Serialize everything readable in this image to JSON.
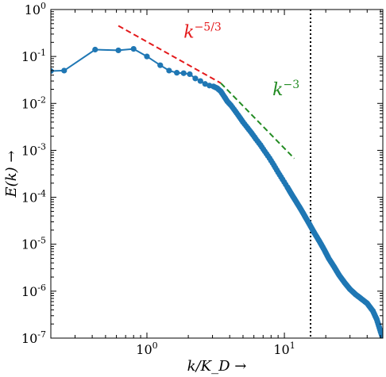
{
  "chart_data": {
    "type": "line",
    "xscale": "log",
    "yscale": "log",
    "xlim": [
      0.2,
      52
    ],
    "ylim": [
      1e-07,
      1
    ],
    "xlabel": "k/K_D →",
    "ylabel": "E(k) →",
    "x_ticks": [
      {
        "value": 1,
        "base": "10",
        "exp": "0"
      },
      {
        "value": 10,
        "base": "10",
        "exp": "1"
      }
    ],
    "y_ticks": [
      {
        "value": 1,
        "base": "10",
        "exp": "0"
      },
      {
        "value": 0.1,
        "base": "10",
        "exp": "-1"
      },
      {
        "value": 0.01,
        "base": "10",
        "exp": "-2"
      },
      {
        "value": 0.001,
        "base": "10",
        "exp": "-3"
      },
      {
        "value": 0.0001,
        "base": "10",
        "exp": "-4"
      },
      {
        "value": 1e-05,
        "base": "10",
        "exp": "-5"
      },
      {
        "value": 1e-06,
        "base": "10",
        "exp": "-6"
      },
      {
        "value": 1e-07,
        "base": "10",
        "exp": "-7"
      }
    ],
    "series": [
      {
        "color": "#1f77b4",
        "markers": true,
        "x": [
          0.2,
          0.25,
          0.42,
          0.62,
          0.8,
          1.0,
          1.25,
          1.45,
          1.65,
          1.85,
          2.05,
          2.25,
          2.45,
          2.65,
          2.85,
          3.05,
          3.25,
          3.45,
          3.65,
          3.85,
          4.1,
          4.4,
          4.7,
          5.0,
          5.4,
          5.8,
          6.2,
          6.7,
          7.2,
          7.8,
          8.4,
          9.0,
          9.7,
          10.5,
          11.3,
          12.2,
          13.2,
          14.2,
          15.3,
          16.5,
          18.0,
          19.5,
          21.0,
          23.0,
          25.0,
          27.5,
          30.0,
          33.0,
          36.0,
          40.0,
          44.0,
          47.0,
          50.0,
          52.0
        ],
        "y": [
          0.049,
          0.05,
          0.14,
          0.135,
          0.145,
          0.1,
          0.065,
          0.05,
          0.045,
          0.044,
          0.042,
          0.034,
          0.03,
          0.026,
          0.024,
          0.023,
          0.021,
          0.018,
          0.014,
          0.011,
          0.009,
          0.0068,
          0.0052,
          0.004,
          0.003,
          0.0023,
          0.00175,
          0.0013,
          0.00095,
          0.00068,
          0.00048,
          0.00034,
          0.00024,
          0.000165,
          0.000115,
          8e-05,
          5.5e-05,
          3.8e-05,
          2.6e-05,
          1.75e-05,
          1.15e-05,
          7.6e-06,
          5e-06,
          3.3e-06,
          2.2e-06,
          1.5e-06,
          1.1e-06,
          8.5e-07,
          7e-07,
          5.5e-07,
          3.8e-07,
          2.5e-07,
          1.4e-07,
          1e-07
        ]
      }
    ],
    "reference_lines": [
      {
        "label_base": "k",
        "label_exp": "−5/3",
        "color": "#e41a1c",
        "dash": true,
        "x": [
          0.62,
          3.45
        ],
        "y": [
          0.45,
          0.027
        ],
        "label_x": 1.85,
        "label_y": 0.25
      },
      {
        "label_base": "k",
        "label_exp": "−3",
        "color": "#228b22",
        "dash": true,
        "x": [
          3.45,
          11.8
        ],
        "y": [
          0.027,
          0.00067
        ],
        "label_x": 8.2,
        "label_y": 0.015
      }
    ],
    "vertical_line": {
      "x": 15.5,
      "color": "#000000",
      "dotted": true
    }
  }
}
